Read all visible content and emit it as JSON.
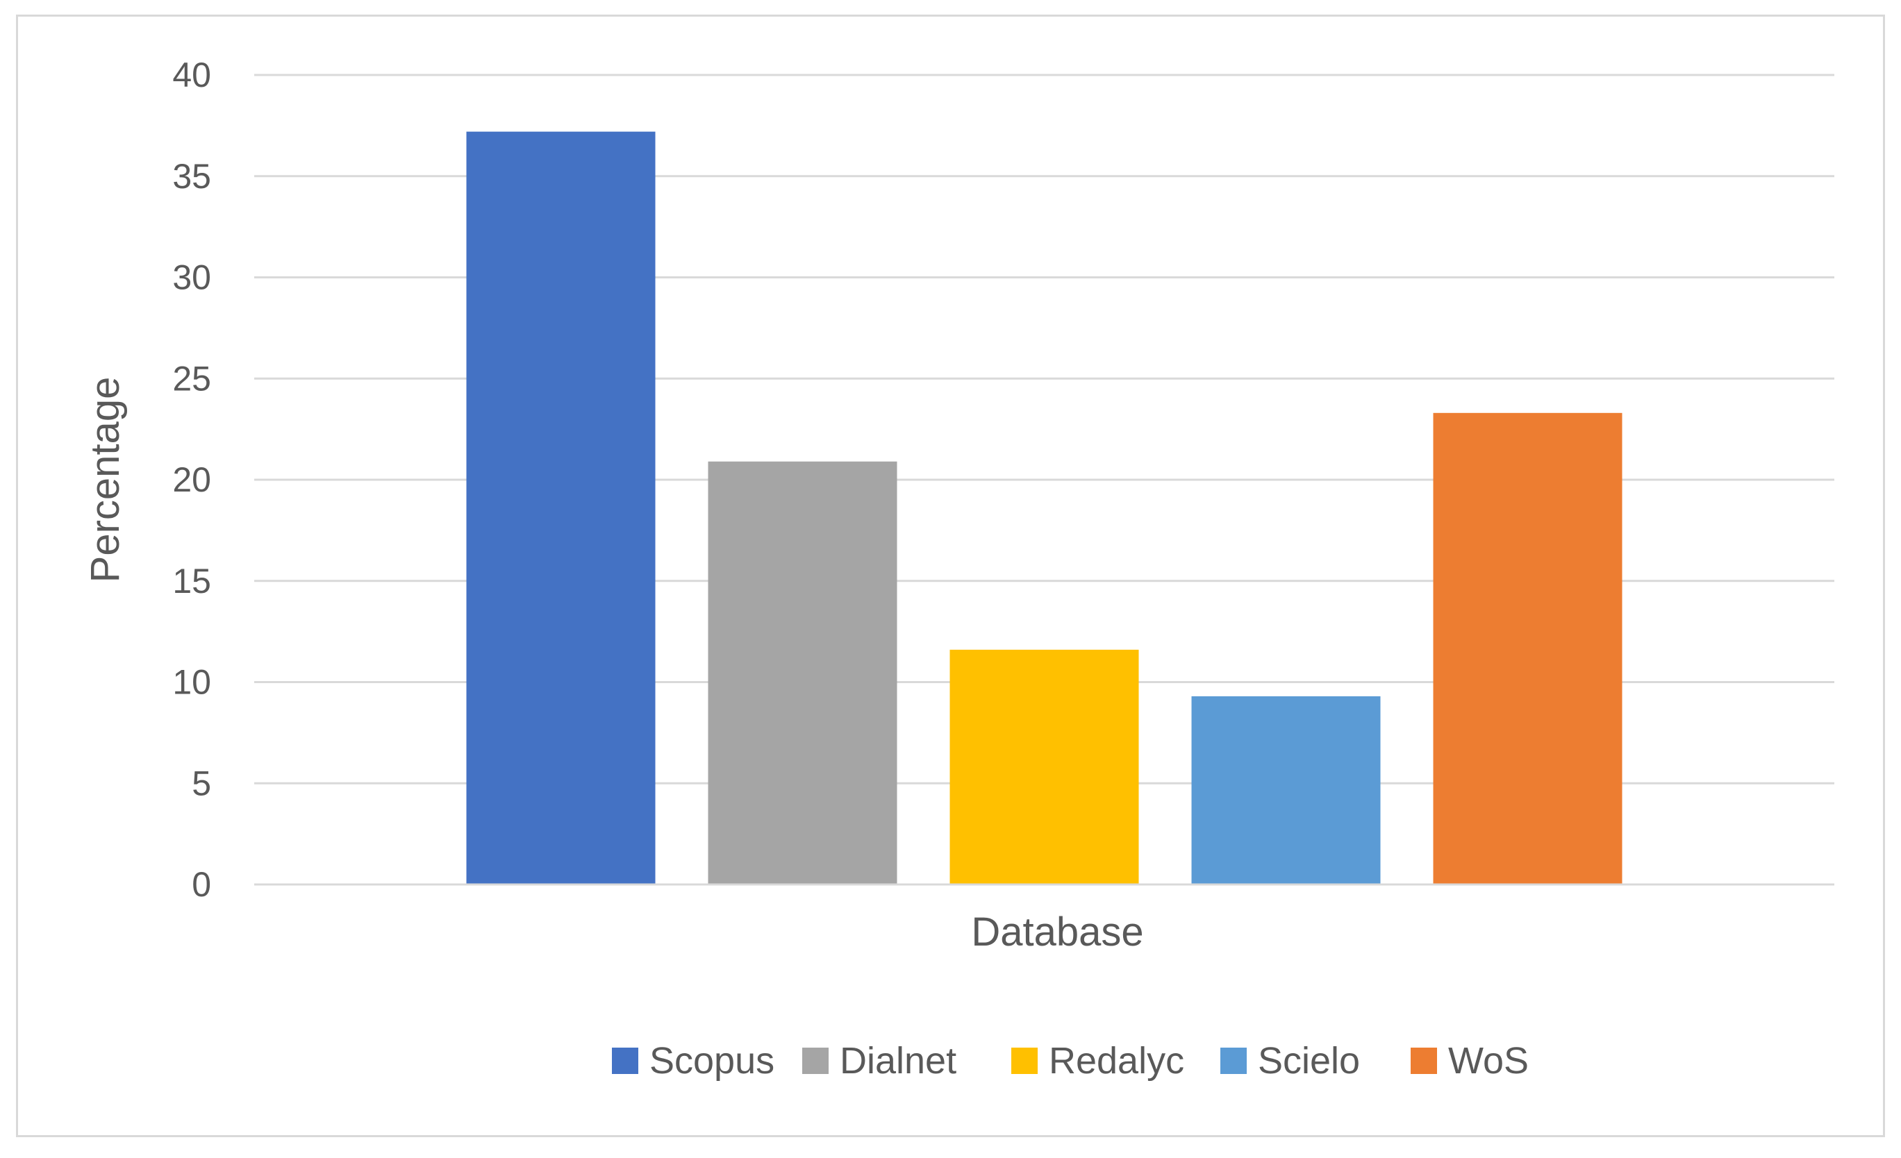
{
  "chart_data": {
    "type": "bar",
    "categories": [
      ""
    ],
    "series": [
      {
        "name": "Scopus",
        "values": [
          37.2
        ],
        "color": "#4472c4"
      },
      {
        "name": "Dialnet",
        "values": [
          20.9
        ],
        "color": "#a5a5a5"
      },
      {
        "name": "Redalyc",
        "values": [
          11.6
        ],
        "color": "#ffc000"
      },
      {
        "name": "Scielo",
        "values": [
          9.3
        ],
        "color": "#5b9bd5"
      },
      {
        "name": "WoS",
        "values": [
          23.3
        ],
        "color": "#ed7d31"
      }
    ],
    "title": "",
    "xlabel": "Database",
    "ylabel": "Percentage",
    "ylim": [
      0,
      40
    ],
    "yticks": [
      0,
      5,
      10,
      15,
      20,
      25,
      30,
      35,
      40
    ],
    "ytick_labels": [
      "0",
      "5",
      "10",
      "15",
      "20",
      "25",
      "30",
      "35",
      "40"
    ],
    "grid": true,
    "legend_position": "bottom"
  }
}
